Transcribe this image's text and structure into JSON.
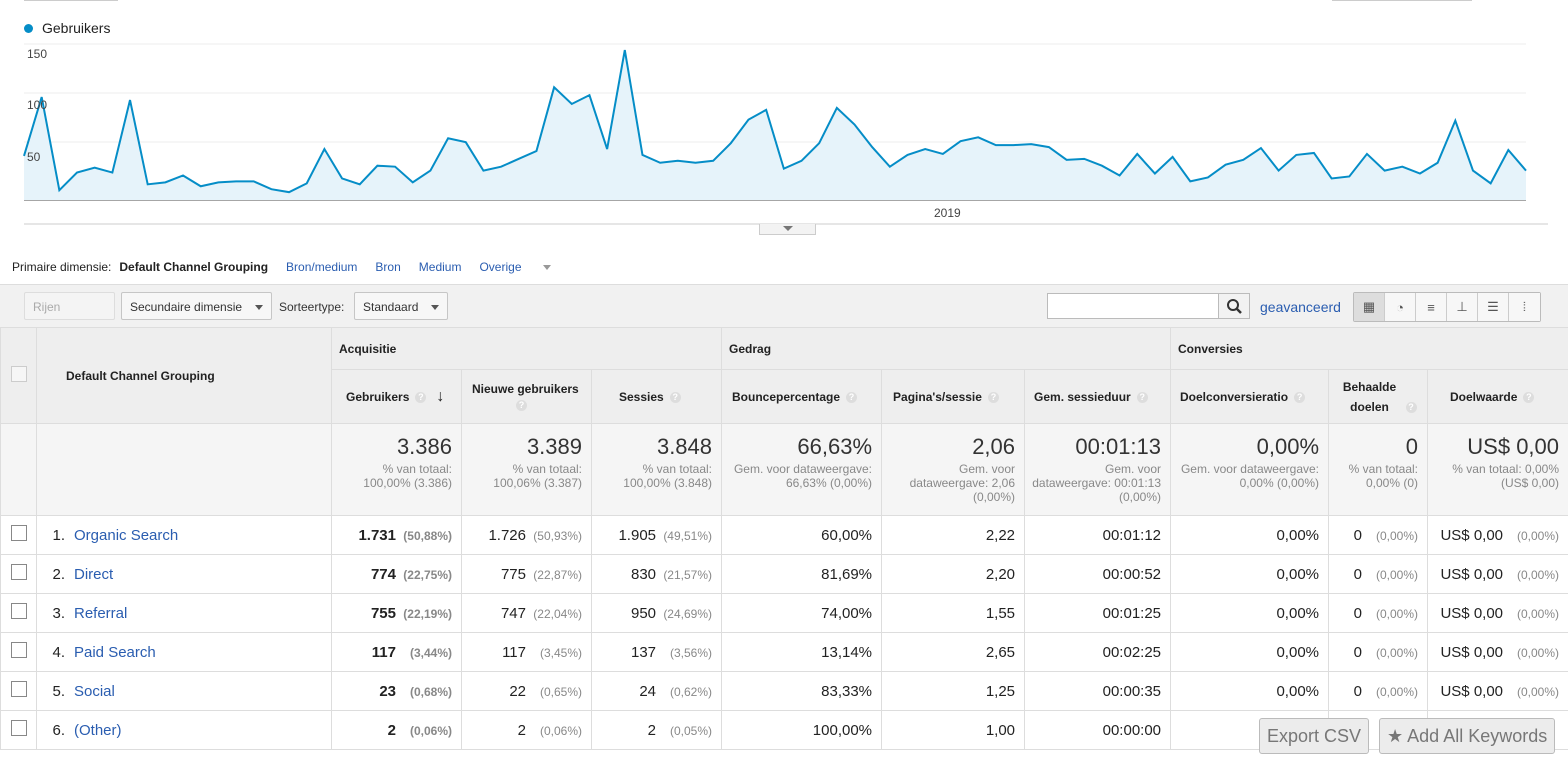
{
  "chart": {
    "legend": "Gebruikers",
    "y_ticks": [
      "150",
      "100",
      "50"
    ],
    "x_label": "2019"
  },
  "chart_data": {
    "type": "area",
    "series": [
      {
        "name": "Gebruikers",
        "values": [
          45,
          105,
          10,
          28,
          33,
          28,
          102,
          16,
          18,
          25,
          14,
          18,
          19,
          19,
          11,
          8,
          17,
          52,
          22,
          16,
          35,
          34,
          18,
          30,
          63,
          59,
          30,
          34,
          42,
          50,
          115,
          98,
          107,
          52,
          153,
          46,
          38,
          40,
          38,
          40,
          58,
          82,
          92,
          32,
          40,
          58,
          94,
          77,
          54,
          34,
          46,
          52,
          47,
          60,
          64,
          56,
          56,
          57,
          54,
          41,
          42,
          35,
          25,
          47,
          27,
          44,
          19,
          23,
          36,
          41,
          53,
          30,
          46,
          48,
          22,
          24,
          47,
          30,
          34,
          27,
          38,
          81,
          30,
          17,
          51,
          30
        ]
      }
    ],
    "ylim": [
      0,
      150
    ],
    "y_ticks": [
      50,
      100,
      150
    ],
    "xlabel": "2019"
  },
  "dimension": {
    "label": "Primaire dimensie:",
    "active": "Default Channel Grouping",
    "links": [
      "Bron/medium",
      "Bron",
      "Medium"
    ],
    "more": "Overige"
  },
  "toolbar": {
    "show_rows": "Rijen weergeven",
    "secondary": "Secundaire dimensie",
    "sort_label": "Sorteertype:",
    "sort_value": "Standaard",
    "advanced": "geavanceerd"
  },
  "table": {
    "dim_header": "Default Channel Grouping",
    "groups": [
      "Acquisitie",
      "Gedrag",
      "Conversies"
    ],
    "columns": [
      "Gebruikers",
      "Nieuwe gebruikers",
      "Sessies",
      "Bouncepercentage",
      "Pagina's/sessie",
      "Gem. sessieduur",
      "Doelconversieratio",
      "Behaalde doelen",
      "Doelwaarde"
    ],
    "totals": [
      {
        "value": "3.386",
        "sub": "% van totaal: 100,00% (3.386)"
      },
      {
        "value": "3.389",
        "sub": "% van totaal: 100,06% (3.387)"
      },
      {
        "value": "3.848",
        "sub": "% van totaal: 100,00% (3.848)"
      },
      {
        "value": "66,63%",
        "sub": "Gem. voor dataweergave: 66,63% (0,00%)"
      },
      {
        "value": "2,06",
        "sub": "Gem. voor dataweergave: 2,06 (0,00%)"
      },
      {
        "value": "00:01:13",
        "sub": "Gem. voor dataweergave: 00:01:13 (0,00%)"
      },
      {
        "value": "0,00%",
        "sub": "Gem. voor dataweergave: 0,00% (0,00%)"
      },
      {
        "value": "0",
        "sub": "% van totaal: 0,00% (0)"
      },
      {
        "value": "US$ 0,00",
        "sub": "% van totaal: 0,00% (US$ 0,00)"
      }
    ],
    "rows": [
      {
        "n": "1.",
        "name": "Organic Search",
        "users": "1.731",
        "users_pct": "(50,88%)",
        "new": "1.726",
        "new_pct": "(50,93%)",
        "sess": "1.905",
        "sess_pct": "(49,51%)",
        "bounce": "60,00%",
        "pps": "2,22",
        "dur": "00:01:12",
        "conv": "0,00%",
        "goals": "0",
        "goals_pct": "(0,00%)",
        "value": "US$ 0,00",
        "value_pct": "(0,00%)"
      },
      {
        "n": "2.",
        "name": "Direct",
        "users": "774",
        "users_pct": "(22,75%)",
        "new": "775",
        "new_pct": "(22,87%)",
        "sess": "830",
        "sess_pct": "(21,57%)",
        "bounce": "81,69%",
        "pps": "2,20",
        "dur": "00:00:52",
        "conv": "0,00%",
        "goals": "0",
        "goals_pct": "(0,00%)",
        "value": "US$ 0,00",
        "value_pct": "(0,00%)"
      },
      {
        "n": "3.",
        "name": "Referral",
        "users": "755",
        "users_pct": "(22,19%)",
        "new": "747",
        "new_pct": "(22,04%)",
        "sess": "950",
        "sess_pct": "(24,69%)",
        "bounce": "74,00%",
        "pps": "1,55",
        "dur": "00:01:25",
        "conv": "0,00%",
        "goals": "0",
        "goals_pct": "(0,00%)",
        "value": "US$ 0,00",
        "value_pct": "(0,00%)"
      },
      {
        "n": "4.",
        "name": "Paid Search",
        "users": "117",
        "users_pct": "(3,44%)",
        "new": "117",
        "new_pct": "(3,45%)",
        "sess": "137",
        "sess_pct": "(3,56%)",
        "bounce": "13,14%",
        "pps": "2,65",
        "dur": "00:02:25",
        "conv": "0,00%",
        "goals": "0",
        "goals_pct": "(0,00%)",
        "value": "US$ 0,00",
        "value_pct": "(0,00%)"
      },
      {
        "n": "5.",
        "name": "Social",
        "users": "23",
        "users_pct": "(0,68%)",
        "new": "22",
        "new_pct": "(0,65%)",
        "sess": "24",
        "sess_pct": "(0,62%)",
        "bounce": "83,33%",
        "pps": "1,25",
        "dur": "00:00:35",
        "conv": "0,00%",
        "goals": "0",
        "goals_pct": "(0,00%)",
        "value": "US$ 0,00",
        "value_pct": "(0,00%)"
      },
      {
        "n": "6.",
        "name": "(Other)",
        "users": "2",
        "users_pct": "(0,06%)",
        "new": "2",
        "new_pct": "(0,06%)",
        "sess": "2",
        "sess_pct": "(0,05%)",
        "bounce": "100,00%",
        "pps": "1,00",
        "dur": "00:00:00",
        "conv": "",
        "goals": "",
        "goals_pct": "",
        "value": "",
        "value_pct": ""
      }
    ]
  },
  "overlay": {
    "export": "Export CSV",
    "keywords": "Add All Keywords"
  },
  "colors": {
    "line": "#058dc7",
    "fill": "#e6f3fa",
    "link": "#2a5db0"
  }
}
